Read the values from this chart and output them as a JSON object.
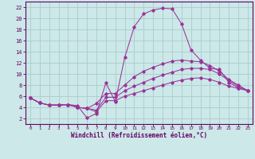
{
  "xlabel": "Windchill (Refroidissement éolien,°C)",
  "bg_color": "#cce8e8",
  "grid_color": "#aacccc",
  "line_color": "#993399",
  "xlim": [
    -0.5,
    23.5
  ],
  "ylim": [
    1.0,
    23.0
  ],
  "xticks": [
    0,
    1,
    2,
    3,
    4,
    5,
    6,
    7,
    8,
    9,
    10,
    11,
    12,
    13,
    14,
    15,
    16,
    17,
    18,
    19,
    20,
    21,
    22,
    23
  ],
  "yticks": [
    2,
    4,
    6,
    8,
    10,
    12,
    14,
    16,
    18,
    20,
    22
  ],
  "line1": {
    "x": [
      0,
      1,
      2,
      3,
      4,
      5,
      6,
      7,
      8,
      9,
      10,
      11,
      12,
      13,
      14,
      15,
      16,
      17,
      18,
      19,
      20,
      21,
      22,
      23
    ],
    "y": [
      5.7,
      4.8,
      4.4,
      4.4,
      4.5,
      4.3,
      2.1,
      2.9,
      8.4,
      5.0,
      13.0,
      18.5,
      20.8,
      21.5,
      21.8,
      21.7,
      19.0,
      14.3,
      12.5,
      11.0,
      10.8,
      8.5,
      7.5,
      7.0
    ]
  },
  "line2": {
    "x": [
      0,
      1,
      2,
      3,
      4,
      5,
      6,
      7,
      8,
      9,
      10,
      11,
      12,
      13,
      14,
      15,
      16,
      17,
      18,
      19,
      20,
      21,
      22,
      23
    ],
    "y": [
      5.7,
      4.8,
      4.4,
      4.4,
      4.5,
      4.0,
      3.8,
      4.7,
      6.5,
      6.5,
      8.0,
      9.5,
      10.5,
      11.2,
      11.8,
      12.3,
      12.5,
      12.3,
      12.2,
      11.5,
      10.5,
      9.0,
      8.0,
      7.0
    ]
  },
  "line3": {
    "x": [
      0,
      1,
      2,
      3,
      4,
      5,
      6,
      7,
      8,
      9,
      10,
      11,
      12,
      13,
      14,
      15,
      16,
      17,
      18,
      19,
      20,
      21,
      22,
      23
    ],
    "y": [
      5.7,
      4.8,
      4.4,
      4.4,
      4.5,
      4.0,
      3.8,
      3.5,
      5.8,
      5.8,
      7.0,
      7.8,
      8.5,
      9.2,
      9.8,
      10.3,
      10.8,
      11.0,
      11.0,
      10.8,
      10.0,
      8.8,
      7.8,
      7.0
    ]
  },
  "line4": {
    "x": [
      0,
      1,
      2,
      3,
      4,
      5,
      6,
      7,
      8,
      9,
      10,
      11,
      12,
      13,
      14,
      15,
      16,
      17,
      18,
      19,
      20,
      21,
      22,
      23
    ],
    "y": [
      5.7,
      4.8,
      4.4,
      4.4,
      4.5,
      4.0,
      3.8,
      3.2,
      5.2,
      5.2,
      6.0,
      6.5,
      7.0,
      7.5,
      8.0,
      8.5,
      8.9,
      9.2,
      9.3,
      9.0,
      8.5,
      7.8,
      7.4,
      7.0
    ]
  }
}
